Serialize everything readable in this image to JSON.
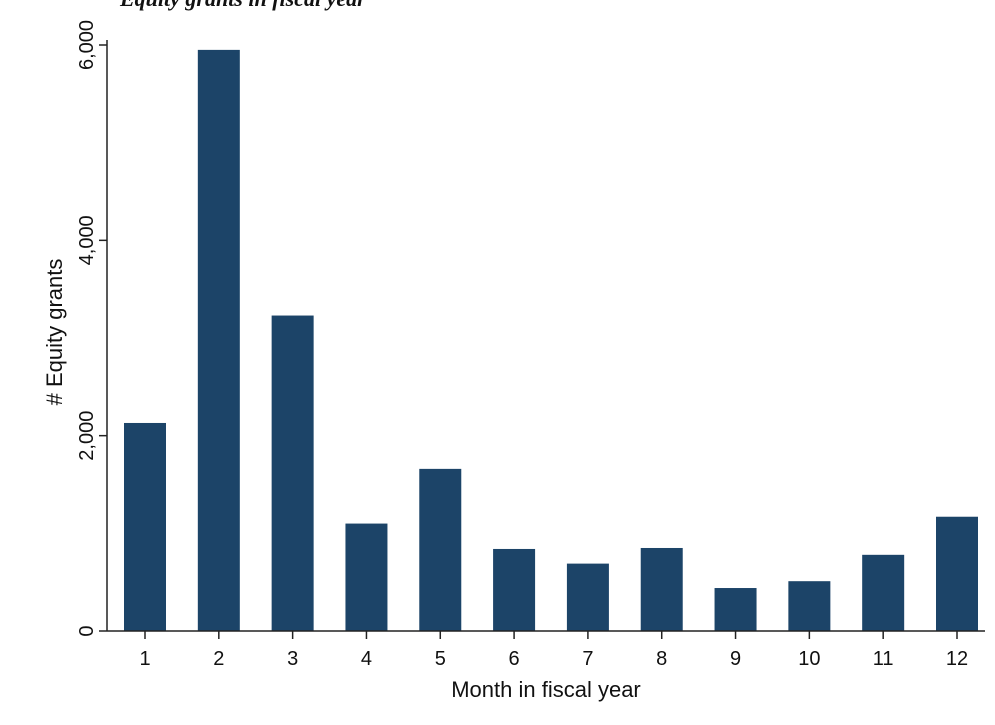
{
  "caption": "Equity grants in fiscal year",
  "chart_data": {
    "type": "bar",
    "categories": [
      "1",
      "2",
      "3",
      "4",
      "5",
      "6",
      "7",
      "8",
      "9",
      "10",
      "11",
      "12"
    ],
    "values": [
      2130,
      5950,
      3230,
      1100,
      1660,
      840,
      690,
      850,
      440,
      510,
      780,
      1170
    ],
    "xlabel": "Month in fiscal year",
    "ylabel": "# Equity grants",
    "ylim": [
      0,
      6000
    ],
    "yticks": [
      0,
      2000,
      4000,
      6000
    ],
    "yticklabels": [
      "0",
      "2,000",
      "4,000",
      "6,000"
    ],
    "bar_color": "#1c4468",
    "grid": false,
    "legend": "none"
  }
}
